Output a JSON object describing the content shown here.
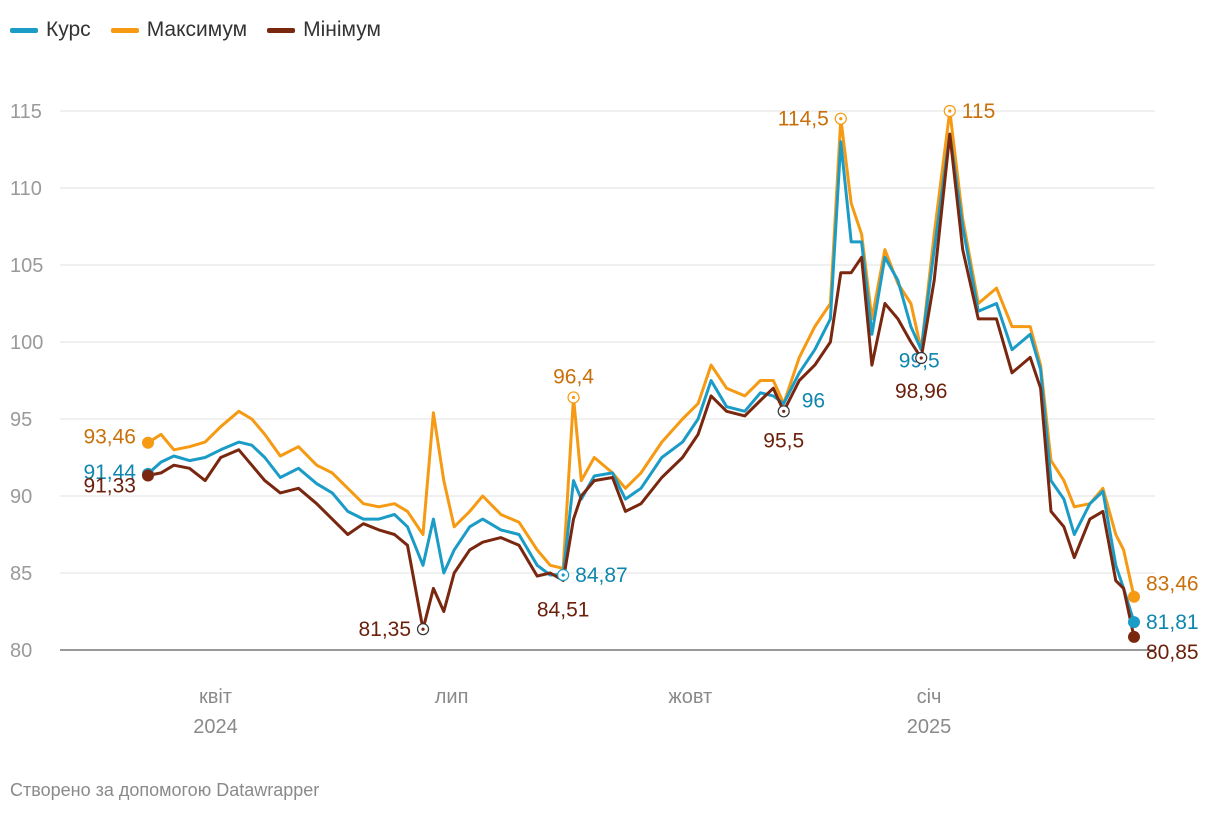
{
  "legend": [
    {
      "label": "Курс",
      "color": "#1b9cc6"
    },
    {
      "label": "Максимум",
      "color": "#f59a12"
    },
    {
      "label": "Мінімум",
      "color": "#7a2710"
    }
  ],
  "footer": "Створено за допомогою Datawrapper",
  "chart_data": {
    "type": "line",
    "x_ticks": [
      {
        "x": "2024-04-01",
        "label": "квіт",
        "sublabel": "2024"
      },
      {
        "x": "2024-07-01",
        "label": "лип",
        "sublabel": ""
      },
      {
        "x": "2024-10-01",
        "label": "жовт",
        "sublabel": ""
      },
      {
        "x": "2025-01-01",
        "label": "січ",
        "sublabel": "2025"
      }
    ],
    "y_ticks": [
      80,
      85,
      90,
      95,
      100,
      105,
      110,
      115
    ],
    "ylim": [
      80,
      117
    ],
    "xlim": [
      "2024-03-06",
      "2025-03-30"
    ],
    "grid": true,
    "legend_position": "top-left",
    "series": [
      {
        "name": "Максимум",
        "color": "#f59a12",
        "points": [
          [
            "2024-03-06",
            93.46
          ],
          [
            "2024-03-11",
            94
          ],
          [
            "2024-03-16",
            93
          ],
          [
            "2024-03-22",
            93.2
          ],
          [
            "2024-03-28",
            93.5
          ],
          [
            "2024-04-03",
            94.5
          ],
          [
            "2024-04-10",
            95.5
          ],
          [
            "2024-04-15",
            95
          ],
          [
            "2024-04-20",
            94
          ],
          [
            "2024-04-26",
            92.6
          ],
          [
            "2024-05-03",
            93.2
          ],
          [
            "2024-05-10",
            92
          ],
          [
            "2024-05-16",
            91.5
          ],
          [
            "2024-05-22",
            90.5
          ],
          [
            "2024-05-28",
            89.5
          ],
          [
            "2024-06-03",
            89.3
          ],
          [
            "2024-06-09",
            89.5
          ],
          [
            "2024-06-14",
            89
          ],
          [
            "2024-06-20",
            87.5
          ],
          [
            "2024-06-24",
            95.4
          ],
          [
            "2024-06-28",
            91
          ],
          [
            "2024-07-02",
            88
          ],
          [
            "2024-07-08",
            89
          ],
          [
            "2024-07-13",
            90
          ],
          [
            "2024-07-20",
            88.8
          ],
          [
            "2024-07-27",
            88.3
          ],
          [
            "2024-08-03",
            86.5
          ],
          [
            "2024-08-08",
            85.5
          ],
          [
            "2024-08-13",
            85.3
          ],
          [
            "2024-08-17",
            96.4
          ],
          [
            "2024-08-20",
            91
          ],
          [
            "2024-08-25",
            92.5
          ],
          [
            "2024-09-01",
            91.5
          ],
          [
            "2024-09-06",
            90.5
          ],
          [
            "2024-09-12",
            91.5
          ],
          [
            "2024-09-20",
            93.5
          ],
          [
            "2024-09-28",
            95
          ],
          [
            "2024-10-04",
            96
          ],
          [
            "2024-10-09",
            98.5
          ],
          [
            "2024-10-15",
            97
          ],
          [
            "2024-10-22",
            96.5
          ],
          [
            "2024-10-28",
            97.5
          ],
          [
            "2024-11-02",
            97.5
          ],
          [
            "2024-11-06",
            96
          ],
          [
            "2024-11-12",
            99
          ],
          [
            "2024-11-18",
            101
          ],
          [
            "2024-11-24",
            102.5
          ],
          [
            "2024-11-28",
            114.5
          ],
          [
            "2024-12-02",
            109
          ],
          [
            "2024-12-06",
            107
          ],
          [
            "2024-12-10",
            101.5
          ],
          [
            "2024-12-15",
            106
          ],
          [
            "2024-12-20",
            103.8
          ],
          [
            "2024-12-25",
            102.5
          ],
          [
            "2024-12-29",
            99.5
          ],
          [
            "2025-01-03",
            107
          ],
          [
            "2025-01-09",
            115
          ],
          [
            "2025-01-14",
            108
          ],
          [
            "2025-01-20",
            102.5
          ],
          [
            "2025-01-27",
            103.5
          ],
          [
            "2025-02-02",
            101
          ],
          [
            "2025-02-09",
            101
          ],
          [
            "2025-02-13",
            98.5
          ],
          [
            "2025-02-17",
            92.3
          ],
          [
            "2025-02-22",
            91
          ],
          [
            "2025-02-26",
            89.3
          ],
          [
            "2025-03-04",
            89.5
          ],
          [
            "2025-03-09",
            90.5
          ],
          [
            "2025-03-14",
            87.5
          ],
          [
            "2025-03-17",
            86.5
          ],
          [
            "2025-03-21",
            83.46
          ]
        ]
      },
      {
        "name": "Курс",
        "color": "#1b9cc6",
        "points": [
          [
            "2024-03-06",
            91.44
          ],
          [
            "2024-03-11",
            92.2
          ],
          [
            "2024-03-16",
            92.6
          ],
          [
            "2024-03-22",
            92.3
          ],
          [
            "2024-03-28",
            92.5
          ],
          [
            "2024-04-03",
            93
          ],
          [
            "2024-04-10",
            93.5
          ],
          [
            "2024-04-15",
            93.3
          ],
          [
            "2024-04-20",
            92.5
          ],
          [
            "2024-04-26",
            91.2
          ],
          [
            "2024-05-03",
            91.8
          ],
          [
            "2024-05-10",
            90.8
          ],
          [
            "2024-05-16",
            90.2
          ],
          [
            "2024-05-22",
            89
          ],
          [
            "2024-05-28",
            88.5
          ],
          [
            "2024-06-03",
            88.5
          ],
          [
            "2024-06-09",
            88.8
          ],
          [
            "2024-06-14",
            88
          ],
          [
            "2024-06-20",
            85.5
          ],
          [
            "2024-06-24",
            88.5
          ],
          [
            "2024-06-28",
            85
          ],
          [
            "2024-07-02",
            86.5
          ],
          [
            "2024-07-08",
            88
          ],
          [
            "2024-07-13",
            88.5
          ],
          [
            "2024-07-20",
            87.8
          ],
          [
            "2024-07-27",
            87.5
          ],
          [
            "2024-08-03",
            85.5
          ],
          [
            "2024-08-08",
            84.87
          ],
          [
            "2024-08-13",
            84.9
          ],
          [
            "2024-08-17",
            91
          ],
          [
            "2024-08-20",
            89.8
          ],
          [
            "2024-08-25",
            91.3
          ],
          [
            "2024-09-01",
            91.5
          ],
          [
            "2024-09-06",
            89.8
          ],
          [
            "2024-09-12",
            90.5
          ],
          [
            "2024-09-20",
            92.5
          ],
          [
            "2024-09-28",
            93.5
          ],
          [
            "2024-10-04",
            95
          ],
          [
            "2024-10-09",
            97.5
          ],
          [
            "2024-10-15",
            95.8
          ],
          [
            "2024-10-22",
            95.5
          ],
          [
            "2024-10-28",
            96.7
          ],
          [
            "2024-11-02",
            96.5
          ],
          [
            "2024-11-06",
            96
          ],
          [
            "2024-11-12",
            98
          ],
          [
            "2024-11-18",
            99.5
          ],
          [
            "2024-11-24",
            101.5
          ],
          [
            "2024-11-28",
            113
          ],
          [
            "2024-12-02",
            106.5
          ],
          [
            "2024-12-06",
            106.5
          ],
          [
            "2024-12-10",
            100.5
          ],
          [
            "2024-12-15",
            105.5
          ],
          [
            "2024-12-20",
            104
          ],
          [
            "2024-12-25",
            101
          ],
          [
            "2024-12-29",
            99.5
          ],
          [
            "2025-01-03",
            106
          ],
          [
            "2025-01-09",
            113.5
          ],
          [
            "2025-01-14",
            107.5
          ],
          [
            "2025-01-20",
            102
          ],
          [
            "2025-01-27",
            102.5
          ],
          [
            "2025-02-02",
            99.5
          ],
          [
            "2025-02-09",
            100.5
          ],
          [
            "2025-02-13",
            98.2
          ],
          [
            "2025-02-17",
            91
          ],
          [
            "2025-02-22",
            89.8
          ],
          [
            "2025-02-26",
            87.5
          ],
          [
            "2025-03-04",
            89.5
          ],
          [
            "2025-03-09",
            90.3
          ],
          [
            "2025-03-14",
            85.5
          ],
          [
            "2025-03-17",
            84
          ],
          [
            "2025-03-21",
            81.81
          ]
        ]
      },
      {
        "name": "Мінімум",
        "color": "#7a2710",
        "points": [
          [
            "2024-03-06",
            91.33
          ],
          [
            "2024-03-11",
            91.5
          ],
          [
            "2024-03-16",
            92
          ],
          [
            "2024-03-22",
            91.8
          ],
          [
            "2024-03-28",
            91
          ],
          [
            "2024-04-03",
            92.5
          ],
          [
            "2024-04-10",
            93
          ],
          [
            "2024-04-15",
            92
          ],
          [
            "2024-04-20",
            91
          ],
          [
            "2024-04-26",
            90.2
          ],
          [
            "2024-05-03",
            90.5
          ],
          [
            "2024-05-10",
            89.5
          ],
          [
            "2024-05-16",
            88.5
          ],
          [
            "2024-05-22",
            87.5
          ],
          [
            "2024-05-28",
            88.2
          ],
          [
            "2024-06-03",
            87.8
          ],
          [
            "2024-06-09",
            87.5
          ],
          [
            "2024-06-14",
            86.8
          ],
          [
            "2024-06-20",
            81.35
          ],
          [
            "2024-06-24",
            84
          ],
          [
            "2024-06-28",
            82.5
          ],
          [
            "2024-07-02",
            85
          ],
          [
            "2024-07-08",
            86.5
          ],
          [
            "2024-07-13",
            87
          ],
          [
            "2024-07-20",
            87.3
          ],
          [
            "2024-07-27",
            86.8
          ],
          [
            "2024-08-03",
            84.8
          ],
          [
            "2024-08-08",
            85
          ],
          [
            "2024-08-13",
            84.51
          ],
          [
            "2024-08-17",
            88.5
          ],
          [
            "2024-08-20",
            90
          ],
          [
            "2024-08-25",
            91
          ],
          [
            "2024-09-01",
            91.2
          ],
          [
            "2024-09-06",
            89
          ],
          [
            "2024-09-12",
            89.5
          ],
          [
            "2024-09-20",
            91.2
          ],
          [
            "2024-09-28",
            92.5
          ],
          [
            "2024-10-04",
            94
          ],
          [
            "2024-10-09",
            96.5
          ],
          [
            "2024-10-15",
            95.5
          ],
          [
            "2024-10-22",
            95.2
          ],
          [
            "2024-10-28",
            96.2
          ],
          [
            "2024-11-02",
            97
          ],
          [
            "2024-11-06",
            95.5
          ],
          [
            "2024-11-12",
            97.5
          ],
          [
            "2024-11-18",
            98.5
          ],
          [
            "2024-11-24",
            100
          ],
          [
            "2024-11-28",
            104.5
          ],
          [
            "2024-12-02",
            104.5
          ],
          [
            "2024-12-06",
            105.5
          ],
          [
            "2024-12-10",
            98.5
          ],
          [
            "2024-12-15",
            102.5
          ],
          [
            "2024-12-20",
            101.5
          ],
          [
            "2024-12-25",
            100
          ],
          [
            "2024-12-29",
            98.96
          ],
          [
            "2025-01-03",
            104
          ],
          [
            "2025-01-09",
            113.5
          ],
          [
            "2025-01-14",
            106
          ],
          [
            "2025-01-20",
            101.5
          ],
          [
            "2025-01-27",
            101.5
          ],
          [
            "2025-02-02",
            98
          ],
          [
            "2025-02-09",
            99
          ],
          [
            "2025-02-13",
            97
          ],
          [
            "2025-02-17",
            89
          ],
          [
            "2025-02-22",
            88
          ],
          [
            "2025-02-26",
            86
          ],
          [
            "2025-03-04",
            88.5
          ],
          [
            "2025-03-09",
            89
          ],
          [
            "2025-03-14",
            84.5
          ],
          [
            "2025-03-17",
            84
          ],
          [
            "2025-03-21",
            80.85
          ]
        ]
      }
    ],
    "annotations": [
      {
        "label": "93,46",
        "series": "Максимум",
        "x": "2024-03-06",
        "y": 93.46,
        "kind": "end",
        "anchor": "left"
      },
      {
        "label": "91,44",
        "series": "Курс",
        "x": "2024-03-06",
        "y": 91.44,
        "kind": "end",
        "anchor": "left"
      },
      {
        "label": "91,33",
        "series": "Мінімум",
        "x": "2024-03-06",
        "y": 91.33,
        "kind": "end",
        "anchor": "left"
      },
      {
        "label": "81,35",
        "series": "Мінімум",
        "x": "2024-06-20",
        "y": 81.35,
        "kind": "circle",
        "anchor": "left"
      },
      {
        "label": "96,4",
        "series": "Максимум",
        "x": "2024-08-17",
        "y": 96.4,
        "kind": "circle",
        "anchor": "above"
      },
      {
        "label": "84,87",
        "series": "Курс",
        "x": "2024-08-13",
        "y": 84.87,
        "kind": "circle",
        "anchor": "right"
      },
      {
        "label": "84,51",
        "series": "Мінімум",
        "x": "2024-08-13",
        "y": 84.51,
        "kind": "none",
        "anchor": "below"
      },
      {
        "label": "114,5",
        "series": "Максимум",
        "x": "2024-11-28",
        "y": 114.5,
        "kind": "circle",
        "anchor": "left"
      },
      {
        "label": "96",
        "series": "Курс",
        "x": "2024-11-06",
        "y": 96,
        "kind": "none",
        "anchor": "right"
      },
      {
        "label": "95,5",
        "series": "Мінімум",
        "x": "2024-11-06",
        "y": 95.5,
        "kind": "circle",
        "anchor": "below"
      },
      {
        "label": "115",
        "series": "Максимум",
        "x": "2025-01-09",
        "y": 115,
        "kind": "circle",
        "anchor": "right"
      },
      {
        "label": "99,5",
        "series": "Курс",
        "x": "2024-12-29",
        "y": 99.5,
        "kind": "none",
        "anchor": "below-near"
      },
      {
        "label": "98,96",
        "series": "Мінімум",
        "x": "2024-12-29",
        "y": 98.96,
        "kind": "circle",
        "anchor": "below"
      },
      {
        "label": "83,46",
        "series": "Максимум",
        "x": "2025-03-21",
        "y": 83.46,
        "kind": "end",
        "anchor": "right"
      },
      {
        "label": "81,81",
        "series": "Курс",
        "x": "2025-03-21",
        "y": 81.81,
        "kind": "end",
        "anchor": "right"
      },
      {
        "label": "80,85",
        "series": "Мінімум",
        "x": "2025-03-21",
        "y": 80.85,
        "kind": "end",
        "anchor": "right"
      }
    ],
    "label_colors": {
      "Максимум": "#c9700a",
      "Курс": "#0f86ad",
      "Мінімум": "#6b200c"
    }
  }
}
